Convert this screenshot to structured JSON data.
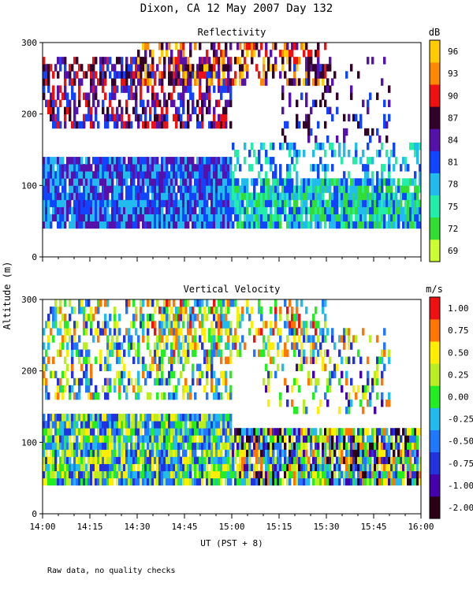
{
  "page_title": "Dixon, CA 12 May 2007  Day 132",
  "y_axis_label": "Altitude (m)",
  "x_axis_label": "UT  (PST + 8)",
  "footnote": "Raw data, no quality checks",
  "chart_data": [
    {
      "type": "heatmap",
      "title": "Reflectivity",
      "colorbar_unit": "dB",
      "colorbar_ticks": [
        "69",
        "72",
        "75",
        "78",
        "81",
        "84",
        "87",
        "90",
        "93",
        "96"
      ],
      "colorbar_colors": [
        "#ccff33",
        "#33dd33",
        "#22eeaa",
        "#22bbee",
        "#1144ff",
        "#5511aa",
        "#33002a",
        "#ee1111",
        "#ff8800",
        "#ffcc00"
      ],
      "x_tick_labels": [
        "14:00",
        "14:15",
        "14:30",
        "14:45",
        "15:00",
        "15:15",
        "15:30",
        "15:45",
        "16:00"
      ],
      "y_tick_labels": [
        "0",
        "100",
        "200",
        "300"
      ],
      "ylim": [
        0,
        300
      ],
      "xlim_minutes": [
        0,
        120
      ],
      "layers": [
        {
          "z0": 40,
          "z1": 140,
          "t0": 0,
          "t1": 60,
          "level_range": [
            3,
            5
          ],
          "density": 0.95
        },
        {
          "z0": 40,
          "z1": 110,
          "t0": 60,
          "t1": 120,
          "level_range": [
            1,
            4
          ],
          "density": 0.9
        },
        {
          "z0": 110,
          "z1": 160,
          "t0": 60,
          "t1": 120,
          "level_range": [
            2,
            4
          ],
          "density": 0.35
        },
        {
          "z0": 180,
          "z1": 280,
          "t0": 0,
          "t1": 60,
          "level_range": [
            4,
            7
          ],
          "density": 0.55
        },
        {
          "z0": 240,
          "z1": 300,
          "t0": 30,
          "t1": 90,
          "level_range": [
            5,
            9
          ],
          "density": 0.45
        },
        {
          "z0": 160,
          "z1": 280,
          "t0": 75,
          "t1": 110,
          "level_range": [
            4,
            6
          ],
          "density": 0.2
        }
      ]
    },
    {
      "type": "heatmap",
      "title": "Vertical Velocity",
      "colorbar_unit": "m/s",
      "colorbar_ticks": [
        "-2.00",
        "-1.00",
        "-0.75",
        "-0.50",
        "-0.25",
        "0.00",
        "0.25",
        "0.50",
        "0.75",
        "1.00"
      ],
      "colorbar_colors": [
        "#2a0016",
        "#4400aa",
        "#2233dd",
        "#2277ff",
        "#22bbee",
        "#22ee22",
        "#bbee22",
        "#ffee00",
        "#ff7700",
        "#ee1111"
      ],
      "x_tick_labels": [
        "14:00",
        "14:15",
        "14:30",
        "14:45",
        "15:00",
        "15:15",
        "15:30",
        "15:45",
        "16:00"
      ],
      "y_tick_labels": [
        "0",
        "100",
        "200",
        "300"
      ],
      "ylim": [
        0,
        300
      ],
      "xlim_minutes": [
        0,
        120
      ],
      "layers": [
        {
          "z0": 40,
          "z1": 140,
          "t0": 0,
          "t1": 60,
          "level_range": [
            2,
            7
          ],
          "density": 0.95
        },
        {
          "z0": 40,
          "z1": 120,
          "t0": 60,
          "t1": 120,
          "level_range": [
            0,
            8
          ],
          "density": 0.9
        },
        {
          "z0": 160,
          "z1": 300,
          "t0": 0,
          "t1": 60,
          "level_range": [
            2,
            8
          ],
          "density": 0.45
        },
        {
          "z0": 220,
          "z1": 300,
          "t0": 35,
          "t1": 90,
          "level_range": [
            3,
            9
          ],
          "density": 0.4
        },
        {
          "z0": 140,
          "z1": 260,
          "t0": 70,
          "t1": 110,
          "level_range": [
            1,
            8
          ],
          "density": 0.25
        }
      ]
    }
  ]
}
